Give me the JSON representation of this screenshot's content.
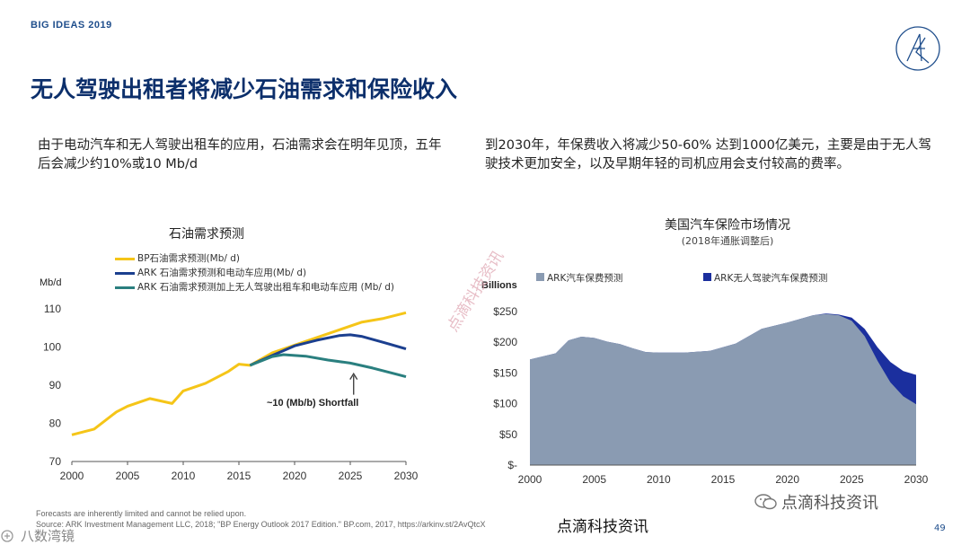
{
  "header": {
    "brand": "BIG IDEAS 2019",
    "title": "无人驾驶出租者将减少石油需求和保险收入",
    "page_number": "49"
  },
  "text": {
    "left_paragraph": "由于电动汽车和无人驾驶出租车的应用，石油需求会在明年见顶，五年后会减少约10%或10 Mb/d",
    "right_paragraph": "到2030年，年保费收入将减少50-60% 达到1000亿美元，主要是由于无人驾驶技术更加安全，以及早期年轻的司机应用会支付较高的费率。"
  },
  "colors": {
    "title": "#0c2f6b",
    "bp_yellow": "#f5c518",
    "ark_blue": "#1b3f8f",
    "ark_teal": "#2a7f7f",
    "insurance_gray": "#8a9bb2",
    "insurance_blue": "#1b2f9e"
  },
  "chart_data": [
    {
      "type": "line",
      "title": "石油需求预测",
      "ylabel": "Mb/d",
      "ylim": [
        70,
        110
      ],
      "xlim": [
        2000,
        2030
      ],
      "x_ticks": [
        "2000",
        "2005",
        "2010",
        "2015",
        "2020",
        "2025",
        "2030"
      ],
      "y_ticks": [
        "70",
        "80",
        "90",
        "100",
        "110"
      ],
      "annotation": "~10 (Mb/b) Shortfall",
      "series": [
        {
          "name": "BP石油需求预测(Mb/ d)",
          "color": "#f5c518",
          "points": [
            [
              2000,
              77
            ],
            [
              2002,
              78.5
            ],
            [
              2004,
              83
            ],
            [
              2005,
              84.5
            ],
            [
              2007,
              86.5
            ],
            [
              2009,
              85.2
            ],
            [
              2010,
              88.5
            ],
            [
              2012,
              90.5
            ],
            [
              2014,
              93.5
            ],
            [
              2015,
              95.5
            ],
            [
              2016,
              95.2
            ],
            [
              2018,
              98.5
            ],
            [
              2020,
              100.5
            ],
            [
              2022,
              102.5
            ],
            [
              2024,
              104.5
            ],
            [
              2026,
              106.5
            ],
            [
              2028,
              107.5
            ],
            [
              2030,
              109
            ]
          ]
        },
        {
          "name": "ARK 石油需求预测和电动车应用(Mb/ d)",
          "color": "#1b3f8f",
          "points": [
            [
              2016,
              95.2
            ],
            [
              2018,
              97.8
            ],
            [
              2020,
              100.3
            ],
            [
              2022,
              101.8
            ],
            [
              2024,
              103
            ],
            [
              2025,
              103.2
            ],
            [
              2026,
              102.8
            ],
            [
              2028,
              101.2
            ],
            [
              2030,
              99.5
            ]
          ]
        },
        {
          "name": "ARK 石油需求预测加上无人驾驶出租车和电动车应用 (Mb/ d)",
          "color": "#2a7f7f",
          "points": [
            [
              2016,
              95.2
            ],
            [
              2018,
              97.5
            ],
            [
              2019,
              98
            ],
            [
              2021,
              97.6
            ],
            [
              2023,
              96.6
            ],
            [
              2025,
              95.8
            ],
            [
              2027,
              94.5
            ],
            [
              2029,
              93
            ],
            [
              2030,
              92.2
            ]
          ]
        }
      ]
    },
    {
      "type": "area",
      "title": "美国汽车保险市场情况",
      "subtitle": "(2018年通胀调整后)",
      "ylabel": "Billions",
      "ylim": [
        0,
        250
      ],
      "xlim": [
        2000,
        2030
      ],
      "x_ticks": [
        "2000",
        "2005",
        "2010",
        "2015",
        "2020",
        "2025",
        "2030"
      ],
      "y_ticks": [
        "$-",
        "$50",
        "$100",
        "$150",
        "$200",
        "$250"
      ],
      "series": [
        {
          "name": "ARK汽车保费预测",
          "color": "#8a9bb2",
          "points": [
            [
              2000,
              172
            ],
            [
              2002,
              182
            ],
            [
              2003,
              203
            ],
            [
              2004,
              209
            ],
            [
              2005,
              207
            ],
            [
              2006,
              201
            ],
            [
              2007,
              197
            ],
            [
              2008,
              190
            ],
            [
              2009,
              184
            ],
            [
              2010,
              183
            ],
            [
              2012,
              183
            ],
            [
              2014,
              186
            ],
            [
              2016,
              198
            ],
            [
              2018,
              222
            ],
            [
              2020,
              232
            ],
            [
              2022,
              244
            ],
            [
              2023,
              246
            ],
            [
              2024,
              244
            ],
            [
              2025,
              235
            ],
            [
              2026,
              210
            ],
            [
              2027,
              170
            ],
            [
              2028,
              135
            ],
            [
              2029,
              112
            ],
            [
              2030,
              99
            ]
          ]
        },
        {
          "name": "ARK无人驾驶汽车保费预测",
          "color": "#1b2f9e",
          "points": [
            [
              2000,
              172
            ],
            [
              2002,
              182
            ],
            [
              2003,
              203
            ],
            [
              2004,
              209
            ],
            [
              2005,
              207
            ],
            [
              2006,
              201
            ],
            [
              2007,
              197
            ],
            [
              2008,
              190
            ],
            [
              2009,
              184
            ],
            [
              2010,
              183
            ],
            [
              2012,
              183
            ],
            [
              2014,
              186
            ],
            [
              2016,
              198
            ],
            [
              2018,
              222
            ],
            [
              2020,
              232
            ],
            [
              2022,
              244
            ],
            [
              2023,
              247
            ],
            [
              2024,
              245
            ],
            [
              2025,
              240
            ],
            [
              2026,
              222
            ],
            [
              2027,
              192
            ],
            [
              2028,
              168
            ],
            [
              2029,
              153
            ],
            [
              2030,
              147
            ]
          ]
        }
      ]
    }
  ],
  "footer": {
    "note": "Forecasts are inherently limited and cannot be relied upon.",
    "source": "Source: ARK Investment Management LLC, 2018; \"BP Energy Outlook 2017 Edition.\" BP.com, 2017, https://arkinv.st/2AvQtcX",
    "watermark_center": "点滴科技资讯",
    "watermark_diag": "点滴科技资讯",
    "wechat_label": "点滴科技资讯",
    "corner_label": "八数湾镜"
  }
}
